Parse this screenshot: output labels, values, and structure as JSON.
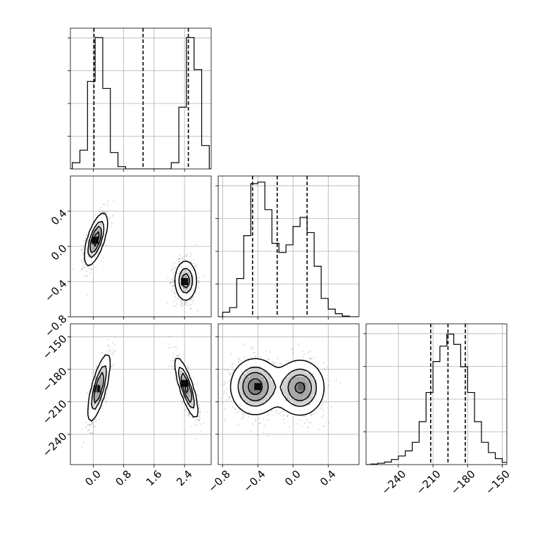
{
  "chart_data": {
    "type": "corner",
    "title": "",
    "parameters": [
      "",
      "",
      ""
    ],
    "grid": true,
    "panels": [
      {
        "id": "hist-p0",
        "type": "histogram",
        "row": 0,
        "col": 0,
        "xlim": [
          -0.6,
          3.1
        ],
        "ylim": [
          0,
          900
        ],
        "bin_edges": [
          -0.55,
          -0.35,
          -0.15,
          0.05,
          0.25,
          0.45,
          0.65,
          0.85,
          1.05,
          1.25,
          1.45,
          1.65,
          1.85,
          2.05,
          2.25,
          2.45,
          2.65,
          2.85,
          3.05
        ],
        "counts": [
          40,
          120,
          560,
          840,
          515,
          105,
          15,
          0,
          0,
          0,
          0,
          0,
          0,
          40,
          395,
          840,
          635,
          150
        ],
        "quantile_lines": [
          0.02,
          1.31,
          2.5
        ]
      },
      {
        "id": "hist-p1",
        "type": "histogram",
        "row": 1,
        "col": 1,
        "xlim": [
          -0.85,
          0.75
        ],
        "ylim": [
          0,
          920
        ],
        "bin_edges": [
          -0.8,
          -0.72,
          -0.64,
          -0.56,
          -0.48,
          -0.4,
          -0.32,
          -0.24,
          -0.16,
          -0.08,
          0.0,
          0.08,
          0.16,
          0.24,
          0.32,
          0.4,
          0.48,
          0.56,
          0.64,
          0.72
        ],
        "counts": [
          30,
          60,
          250,
          530,
          870,
          880,
          700,
          480,
          420,
          470,
          590,
          650,
          550,
          330,
          120,
          50,
          20,
          5,
          0
        ],
        "quantile_lines": [
          -0.46,
          -0.18,
          0.16
        ]
      },
      {
        "id": "hist-p2",
        "type": "histogram",
        "row": 2,
        "col": 2,
        "xlim": [
          -268,
          -146
        ],
        "ylim": [
          0,
          820
        ],
        "bin_edges": [
          -264,
          -258,
          -252,
          -246,
          -240,
          -234,
          -228,
          -222,
          -216,
          -210,
          -204,
          -198,
          -192,
          -186,
          -180,
          -174,
          -168,
          -162,
          -156,
          -150,
          -144
        ],
        "counts": [
          3,
          8,
          15,
          30,
          50,
          80,
          130,
          250,
          420,
          600,
          690,
          760,
          700,
          570,
          420,
          250,
          130,
          70,
          35,
          13
        ],
        "quantile_lines": [
          -212,
          -197,
          -182
        ]
      },
      {
        "id": "panel-p0-p1",
        "type": "2d",
        "row": 1,
        "col": 0,
        "xlim": [
          -0.6,
          3.1
        ],
        "ylim": [
          -0.8,
          0.8
        ],
        "modes": [
          {
            "mx": 0.07,
            "my": 0.08,
            "sx": 0.15,
            "sy": 0.15,
            "rho": 0.65,
            "weight": 0.5
          },
          {
            "mx": 2.43,
            "my": -0.39,
            "sx": 0.15,
            "sy": 0.12,
            "rho": 0.0,
            "weight": 0.5
          }
        ],
        "hot_cells": [
          {
            "x": 0.05,
            "y": 0.07,
            "level": 0.95
          },
          {
            "x": 2.4,
            "y": -0.4,
            "level": 0.95
          }
        ]
      },
      {
        "id": "panel-p0-p2",
        "type": "2d",
        "row": 2,
        "col": 0,
        "xlim": [
          -0.6,
          3.1
        ],
        "ylim": [
          -268,
          -138
        ],
        "modes": [
          {
            "mx": 0.15,
            "my": -197,
            "sx": 0.15,
            "sy": 16,
            "rho": 0.75,
            "weight": 0.5
          },
          {
            "mx": 2.45,
            "my": -197,
            "sx": 0.15,
            "sy": 14,
            "rho": -0.8,
            "weight": 0.5
          }
        ],
        "hot_cells": [
          {
            "x": 0.1,
            "y": -198,
            "level": 0.7
          },
          {
            "x": 2.4,
            "y": -193,
            "level": 0.95
          }
        ]
      },
      {
        "id": "panel-p1-p2",
        "type": "2d",
        "row": 2,
        "col": 1,
        "xlim": [
          -0.85,
          0.75
        ],
        "ylim": [
          -268,
          -138
        ],
        "modes": [
          {
            "mx": -0.43,
            "my": -196,
            "sx": 0.14,
            "sy": 13,
            "rho": 0.0,
            "weight": 0.52
          },
          {
            "mx": 0.08,
            "my": -197,
            "sx": 0.14,
            "sy": 13,
            "rho": 0.0,
            "weight": 0.48
          }
        ],
        "hot_cells": [
          {
            "x": -0.4,
            "y": -196,
            "level": 0.95
          },
          {
            "x": 0.1,
            "y": -196,
            "level": 0.6
          }
        ]
      }
    ],
    "ticks": {
      "x_col0": {
        "values": [
          0.0,
          0.8,
          1.6,
          2.4
        ],
        "labels": [
          "0.0",
          "0.8",
          "1.6",
          "2.4"
        ]
      },
      "x_col1": {
        "values": [
          -0.8,
          -0.4,
          0.0,
          0.4
        ],
        "labels": [
          "−0.8",
          "−0.4",
          "0.0",
          "0.4"
        ]
      },
      "x_col2": {
        "values": [
          -240,
          -210,
          -180,
          -150
        ],
        "labels": [
          "−240",
          "−210",
          "−180",
          "−150"
        ]
      },
      "y_row1": {
        "values": [
          -0.8,
          -0.4,
          0.0,
          0.4
        ],
        "labels": [
          "−0.8",
          "−0.4",
          "0.0",
          "0.4"
        ]
      },
      "y_row2": {
        "values": [
          -240,
          -210,
          -180,
          -150
        ],
        "labels": [
          "−240",
          "−210",
          "−180",
          "−150"
        ]
      }
    }
  }
}
